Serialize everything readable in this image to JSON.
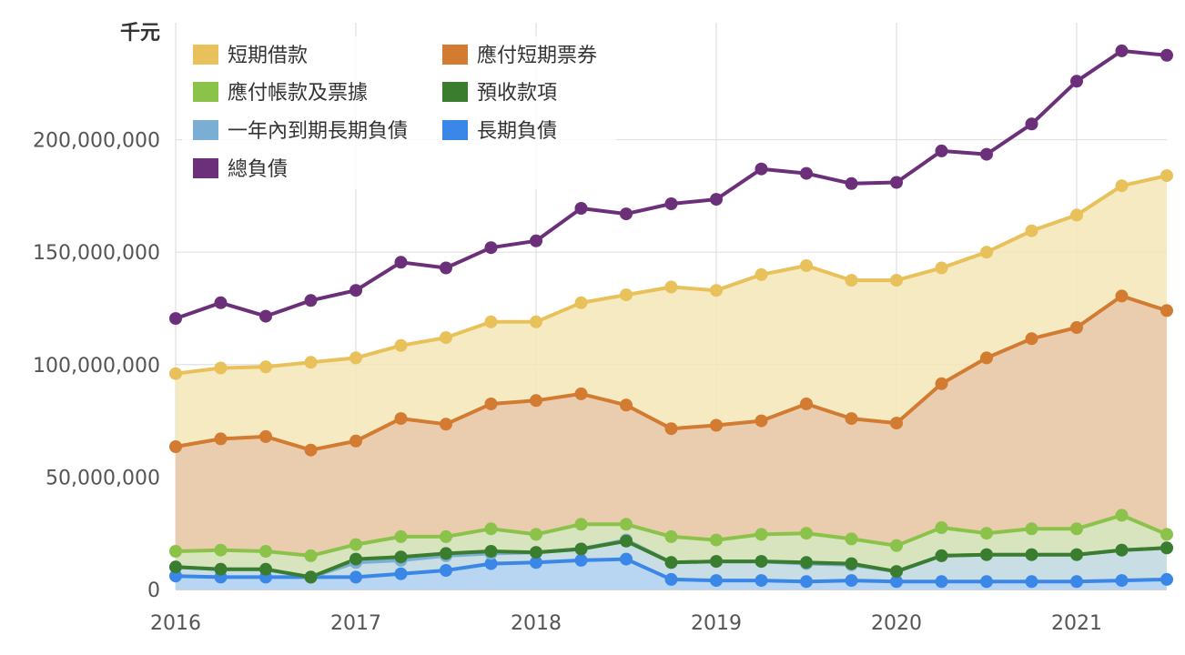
{
  "chart_data": {
    "type": "area",
    "unit_label": "千元",
    "x": [
      2016.0,
      2016.25,
      2016.5,
      2016.75,
      2017.0,
      2017.25,
      2017.5,
      2017.75,
      2018.0,
      2018.25,
      2018.5,
      2018.75,
      2019.0,
      2019.25,
      2019.5,
      2019.75,
      2020.0,
      2020.25,
      2020.5,
      2020.75,
      2021.0,
      2021.25,
      2021.5
    ],
    "x_ticks": [
      "2016",
      "2017",
      "2018",
      "2019",
      "2020",
      "2021"
    ],
    "y_ticks": [
      "0",
      "50,000,000",
      "100,000,000",
      "150,000,000",
      "200,000,000"
    ],
    "ylim": [
      0,
      252000000
    ],
    "xlim": [
      2016.0,
      2021.5
    ],
    "grid": true,
    "legend_position": "top-left",
    "series": [
      {
        "name": "短期借款",
        "color": "#e8c15a",
        "fill": "#f5e6b8",
        "values": [
          96000000,
          98500000,
          99000000,
          101000000,
          103000000,
          108500000,
          112000000,
          119000000,
          119000000,
          127500000,
          131000000,
          134500000,
          133000000,
          140000000,
          144000000,
          137500000,
          137500000,
          143000000,
          150000000,
          159500000,
          166500000,
          179500000,
          184000000
        ]
      },
      {
        "name": "應付短期票券",
        "color": "#d27b31",
        "fill": "#e8c8ac",
        "values": [
          63500000,
          67000000,
          68000000,
          62000000,
          66000000,
          76000000,
          73500000,
          82500000,
          84000000,
          87000000,
          82000000,
          71500000,
          73000000,
          75000000,
          82500000,
          76000000,
          74000000,
          91500000,
          103000000,
          111500000,
          116500000,
          130500000,
          124000000
        ]
      },
      {
        "name": "應付帳款及票據",
        "color": "#8bc34a",
        "fill": "#d5e8bf",
        "values": [
          17000000,
          17500000,
          17000000,
          15000000,
          20000000,
          23500000,
          23500000,
          27000000,
          24500000,
          29000000,
          29000000,
          23500000,
          22000000,
          24500000,
          25000000,
          22500000,
          19500000,
          27500000,
          25000000,
          27000000,
          27000000,
          33000000,
          24500000
        ]
      },
      {
        "name": "預收款項",
        "color": "#3a7d2f",
        "fill": "#c3dfbf",
        "values": [
          10000000,
          9000000,
          9000000,
          5500000,
          13500000,
          14500000,
          16000000,
          17000000,
          16500000,
          18000000,
          21500000,
          12000000,
          12500000,
          12500000,
          12000000,
          11500000,
          8000000,
          15000000,
          15500000,
          15500000,
          15500000,
          17500000,
          18500000
        ]
      },
      {
        "name": "一年內到期長期負債",
        "color": "#7aaed3",
        "fill": "#c9dcea",
        "values": [
          10000000,
          9000000,
          9000000,
          5500000,
          12000000,
          13000000,
          15000000,
          16000000,
          16500000,
          18000000,
          22000000,
          12000000,
          12500000,
          12500000,
          11500000,
          11000000,
          8000000,
          15000000,
          15500000,
          15500000,
          15500000,
          17500000,
          18500000
        ]
      },
      {
        "name": "長期負債",
        "color": "#3a87e8",
        "fill": "#b5d3f5",
        "values": [
          6000000,
          5500000,
          5500000,
          5500000,
          5500000,
          7000000,
          8500000,
          11500000,
          12000000,
          13000000,
          13500000,
          4500000,
          4000000,
          4000000,
          3500000,
          4000000,
          3500000,
          3500000,
          3500000,
          3500000,
          3500000,
          4000000,
          4500000
        ]
      },
      {
        "name": "總負債",
        "color": "#6b3079",
        "fill": "none",
        "values": [
          120500000,
          127500000,
          121500000,
          128500000,
          133000000,
          145500000,
          143000000,
          152000000,
          155000000,
          169500000,
          167000000,
          171500000,
          173500000,
          187000000,
          185000000,
          180500000,
          181000000,
          195000000,
          193500000,
          207000000,
          226000000,
          239500000,
          237500000
        ]
      }
    ]
  }
}
